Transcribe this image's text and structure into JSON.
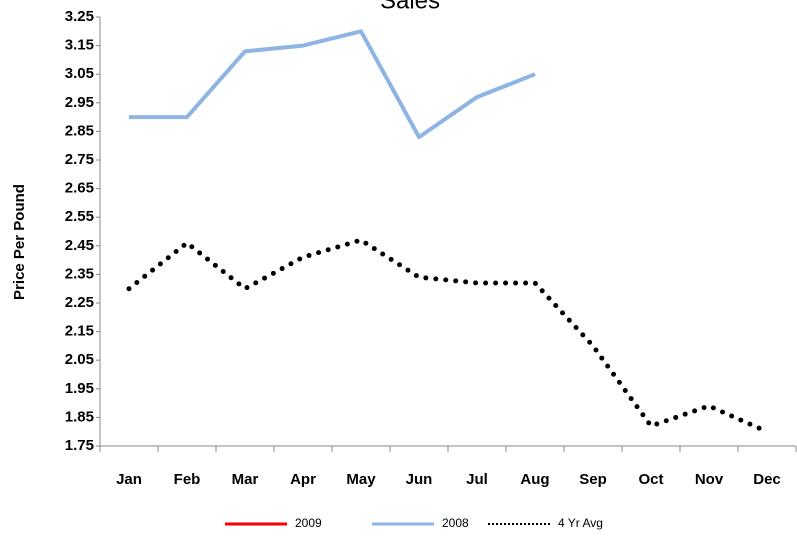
{
  "chart_data": {
    "type": "line",
    "title": "Sales",
    "y_label": "Price Per Pound",
    "categories": [
      "Jan",
      "Feb",
      "Mar",
      "Apr",
      "May",
      "Jun",
      "Jul",
      "Aug",
      "Sep",
      "Oct",
      "Nov",
      "Dec"
    ],
    "series": [
      {
        "name": "2009",
        "color": "#ff0000",
        "values": [
          null,
          null,
          null,
          null,
          null,
          null,
          null,
          null,
          null,
          null,
          null,
          null
        ]
      },
      {
        "name": "2008",
        "color": "#8eb4e3",
        "values": [
          2.9,
          2.9,
          3.13,
          3.15,
          3.2,
          2.83,
          2.97,
          3.05,
          null,
          null,
          null,
          null
        ]
      },
      {
        "name": "4 Yr Avg",
        "color": "#000000",
        "dotted": true,
        "values": [
          2.3,
          2.46,
          2.3,
          2.41,
          2.47,
          2.34,
          2.32,
          2.32,
          2.1,
          1.82,
          1.89,
          1.8
        ]
      }
    ],
    "ylim": [
      1.75,
      3.25
    ],
    "yticks": [
      1.75,
      1.85,
      1.95,
      2.05,
      2.15,
      2.25,
      2.35,
      2.45,
      2.55,
      2.65,
      2.75,
      2.85,
      2.95,
      3.05,
      3.15,
      3.25
    ],
    "grid": false,
    "legend": "bottom"
  }
}
